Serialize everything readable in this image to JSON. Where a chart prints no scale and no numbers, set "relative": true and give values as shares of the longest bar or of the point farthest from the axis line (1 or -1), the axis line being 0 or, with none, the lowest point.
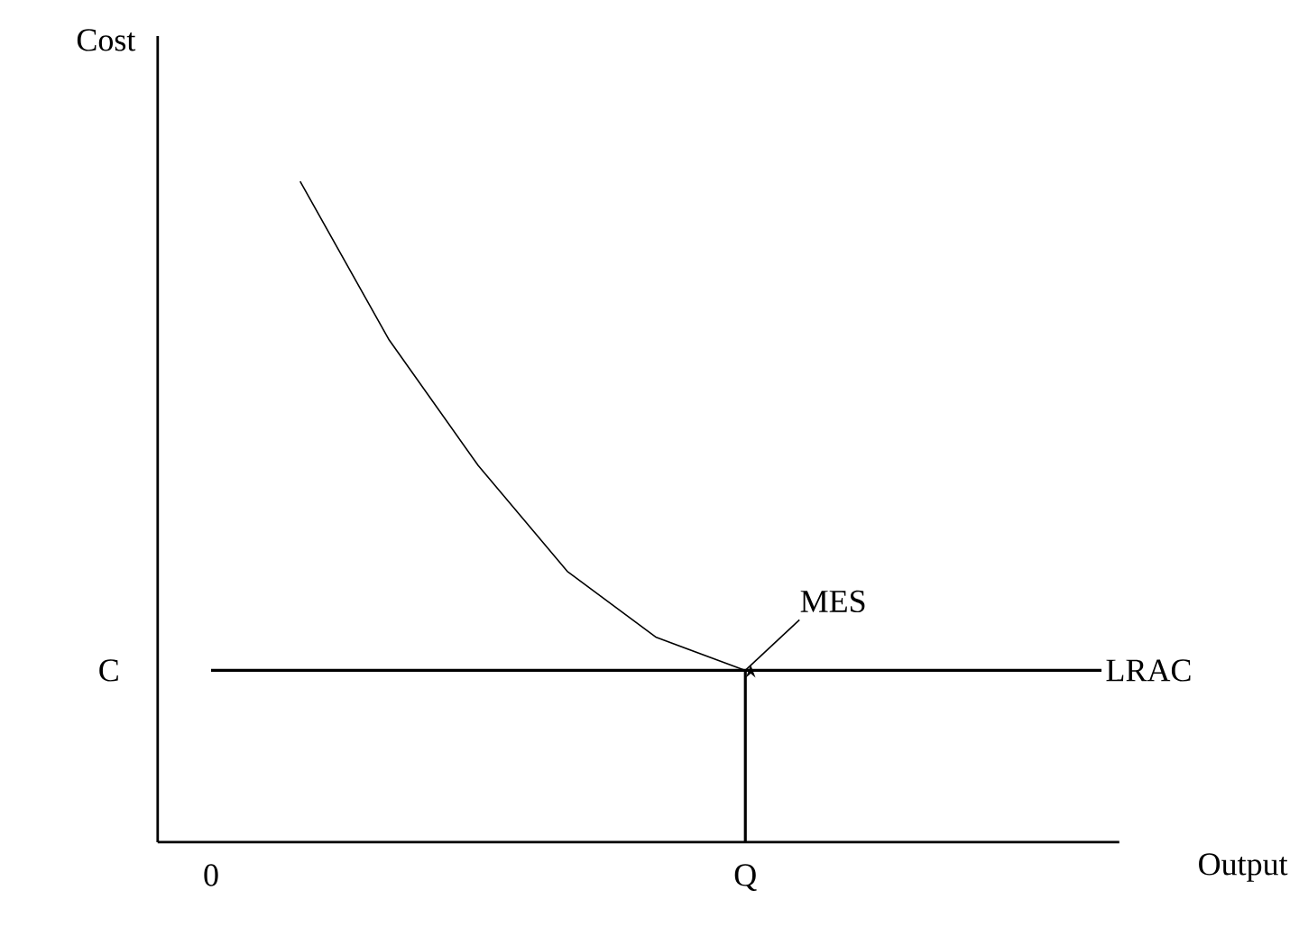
{
  "chart_data": {
    "type": "line",
    "relative": true,
    "xlabel": "Output",
    "ylabel": "Cost",
    "categories": [
      "0",
      null,
      null,
      null,
      null,
      null,
      "Q",
      null,
      null,
      null,
      null
    ],
    "series": [
      {
        "name": "LRAC",
        "color": "#000000",
        "values": [
          null,
          1.0,
          0.76,
          0.57,
          0.41,
          0.31,
          0.26,
          0.26,
          0.26,
          0.26,
          0.26
        ]
      }
    ],
    "ref_lines": [
      {
        "axis": "y",
        "value": 0.26,
        "label": "C",
        "color": "#000000"
      },
      {
        "axis": "x",
        "value": "Q",
        "color": "#000000"
      }
    ],
    "annotations": [
      {
        "text": "MES",
        "x": "Q",
        "y": 0.26
      }
    ],
    "grid": false,
    "legend": false,
    "marker": "none",
    "line_style": "solid"
  }
}
